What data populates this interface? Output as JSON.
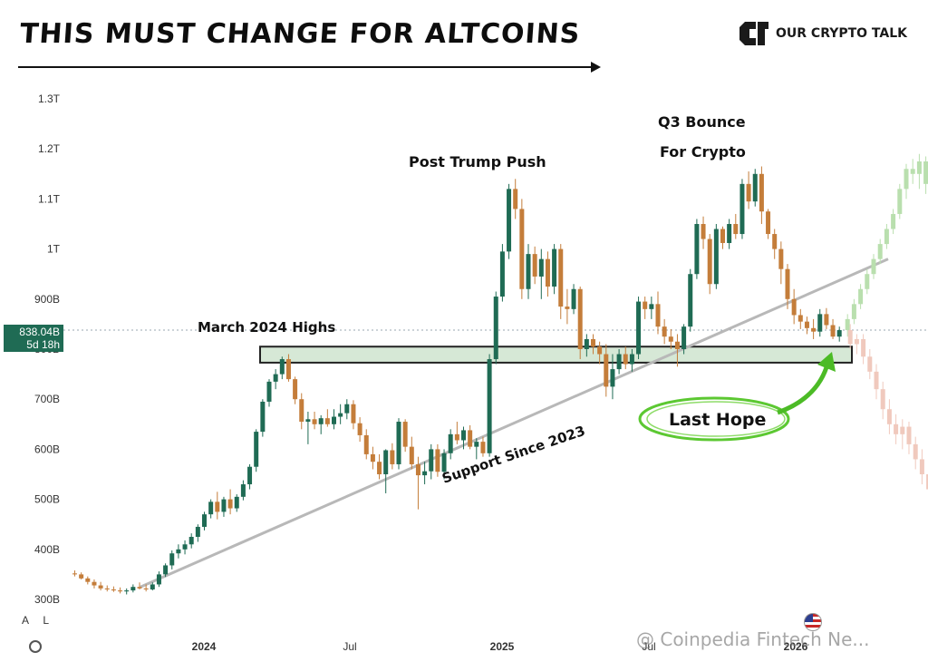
{
  "headline": "THIS MUST CHANGE FOR ALTCOINS",
  "brand": {
    "name": "OUR CRYPTO TALK"
  },
  "price_label": {
    "value": "838.04B",
    "countdown": "5d 18h"
  },
  "toolbar_letters": [
    "A",
    "L"
  ],
  "watermark": "@ Coinpedia Fintech Ne...",
  "colors": {
    "up": "#1f6b54",
    "down": "#c47d3a",
    "zone_fill": "#d6e8d6",
    "zone_border": "#222222",
    "trend": "#b8b8b8",
    "ghost_up": "#b9dfae",
    "ghost_down": "#f0c9bd",
    "hope": "#4cbb26"
  },
  "chart_data": {
    "type": "candlestick",
    "title": "THIS MUST CHANGE FOR ALTCOINS",
    "y_ticks": [
      "1.3T",
      "1.2T",
      "1.1T",
      "1T",
      "900B",
      "800B",
      "700B",
      "600B",
      "500B",
      "400B",
      "300B"
    ],
    "y_tick_values": [
      1300,
      1200,
      1100,
      1000,
      900,
      800,
      700,
      600,
      500,
      400,
      300
    ],
    "y_unit": "B USD",
    "ylim": [
      290,
      1340
    ],
    "x_ticks": [
      "2024",
      "Jul",
      "2025",
      "Jul",
      "2026"
    ],
    "current_price": 838.04,
    "candles_ohlc": [
      [
        352,
        358,
        346,
        350
      ],
      [
        350,
        354,
        340,
        342
      ],
      [
        342,
        346,
        330,
        335
      ],
      [
        335,
        340,
        322,
        328
      ],
      [
        328,
        335,
        318,
        322
      ],
      [
        322,
        328,
        316,
        320
      ],
      [
        320,
        326,
        315,
        318
      ],
      [
        318,
        324,
        312,
        316
      ],
      [
        316,
        322,
        310,
        318
      ],
      [
        318,
        330,
        314,
        325
      ],
      [
        325,
        334,
        320,
        322
      ],
      [
        322,
        330,
        316,
        320
      ],
      [
        320,
        334,
        318,
        330
      ],
      [
        330,
        356,
        325,
        350
      ],
      [
        350,
        372,
        345,
        368
      ],
      [
        368,
        398,
        360,
        392
      ],
      [
        392,
        410,
        382,
        400
      ],
      [
        400,
        418,
        390,
        410
      ],
      [
        410,
        432,
        402,
        425
      ],
      [
        425,
        450,
        415,
        445
      ],
      [
        445,
        475,
        438,
        470
      ],
      [
        470,
        500,
        462,
        495
      ],
      [
        495,
        515,
        460,
        475
      ],
      [
        475,
        505,
        465,
        500
      ],
      [
        500,
        520,
        470,
        482
      ],
      [
        482,
        510,
        475,
        505
      ],
      [
        505,
        538,
        498,
        530
      ],
      [
        530,
        570,
        520,
        565
      ],
      [
        565,
        640,
        555,
        635
      ],
      [
        635,
        700,
        625,
        695
      ],
      [
        695,
        740,
        685,
        735
      ],
      [
        735,
        760,
        720,
        750
      ],
      [
        750,
        785,
        740,
        780
      ],
      [
        780,
        790,
        735,
        740
      ],
      [
        740,
        745,
        690,
        700
      ],
      [
        700,
        712,
        640,
        655
      ],
      [
        655,
        675,
        610,
        660
      ],
      [
        660,
        675,
        640,
        650
      ],
      [
        650,
        668,
        630,
        662
      ],
      [
        662,
        680,
        645,
        650
      ],
      [
        650,
        680,
        640,
        665
      ],
      [
        665,
        690,
        650,
        672
      ],
      [
        672,
        700,
        660,
        690
      ],
      [
        690,
        698,
        640,
        652
      ],
      [
        652,
        664,
        615,
        628
      ],
      [
        628,
        640,
        580,
        590
      ],
      [
        590,
        605,
        560,
        575
      ],
      [
        575,
        590,
        540,
        550
      ],
      [
        550,
        600,
        512,
        598
      ],
      [
        598,
        612,
        560,
        570
      ],
      [
        570,
        662,
        560,
        655
      ],
      [
        655,
        660,
        595,
        605
      ],
      [
        605,
        625,
        560,
        570
      ],
      [
        570,
        585,
        480,
        548
      ],
      [
        548,
        575,
        530,
        556
      ],
      [
        556,
        610,
        540,
        600
      ],
      [
        600,
        610,
        545,
        555
      ],
      [
        555,
        600,
        540,
        592
      ],
      [
        592,
        640,
        580,
        630
      ],
      [
        630,
        655,
        610,
        618
      ],
      [
        618,
        645,
        600,
        638
      ],
      [
        638,
        648,
        600,
        605
      ],
      [
        605,
        622,
        580,
        615
      ],
      [
        615,
        625,
        585,
        592
      ],
      [
        592,
        790,
        585,
        780
      ],
      [
        780,
        915,
        770,
        905
      ],
      [
        905,
        1010,
        895,
        995
      ],
      [
        995,
        1130,
        980,
        1120
      ],
      [
        1120,
        1140,
        1060,
        1080
      ],
      [
        1080,
        1100,
        900,
        920
      ],
      [
        920,
        1010,
        900,
        990
      ],
      [
        990,
        1005,
        930,
        945
      ],
      [
        945,
        1000,
        900,
        980
      ],
      [
        980,
        995,
        905,
        925
      ],
      [
        925,
        1010,
        910,
        1000
      ],
      [
        1000,
        1010,
        860,
        885
      ],
      [
        885,
        920,
        850,
        880
      ],
      [
        880,
        930,
        870,
        920
      ],
      [
        920,
        925,
        780,
        800
      ],
      [
        800,
        830,
        785,
        820
      ],
      [
        820,
        830,
        790,
        805
      ],
      [
        805,
        815,
        770,
        790
      ],
      [
        790,
        810,
        705,
        725
      ],
      [
        725,
        790,
        700,
        760
      ],
      [
        760,
        800,
        750,
        790
      ],
      [
        790,
        805,
        760,
        770
      ],
      [
        770,
        800,
        755,
        790
      ],
      [
        790,
        905,
        780,
        895
      ],
      [
        895,
        905,
        860,
        880
      ],
      [
        880,
        905,
        860,
        890
      ],
      [
        890,
        915,
        830,
        845
      ],
      [
        845,
        860,
        810,
        825
      ],
      [
        825,
        840,
        800,
        815
      ],
      [
        815,
        830,
        765,
        800
      ],
      [
        800,
        850,
        790,
        845
      ],
      [
        845,
        960,
        835,
        950
      ],
      [
        950,
        1060,
        940,
        1050
      ],
      [
        1050,
        1065,
        1000,
        1020
      ],
      [
        1020,
        1030,
        910,
        930
      ],
      [
        930,
        1050,
        920,
        1040
      ],
      [
        1040,
        1045,
        1000,
        1012
      ],
      [
        1012,
        1060,
        1000,
        1050
      ],
      [
        1050,
        1070,
        1020,
        1030
      ],
      [
        1030,
        1140,
        1020,
        1130
      ],
      [
        1130,
        1155,
        1080,
        1095
      ],
      [
        1095,
        1160,
        1085,
        1150
      ],
      [
        1150,
        1165,
        1050,
        1075
      ],
      [
        1075,
        1080,
        1020,
        1030
      ],
      [
        1030,
        1040,
        980,
        1000
      ],
      [
        1000,
        1015,
        930,
        960
      ],
      [
        960,
        970,
        880,
        900
      ],
      [
        900,
        920,
        850,
        868
      ],
      [
        868,
        880,
        840,
        855
      ],
      [
        855,
        865,
        830,
        842
      ],
      [
        842,
        860,
        820,
        835
      ],
      [
        835,
        880,
        825,
        870
      ],
      [
        870,
        882,
        840,
        848
      ],
      [
        848,
        860,
        820,
        825
      ],
      [
        825,
        845,
        815,
        838
      ]
    ],
    "projected_up_ohlc": [
      [
        838,
        870,
        825,
        860
      ],
      [
        860,
        900,
        850,
        890
      ],
      [
        890,
        930,
        880,
        920
      ],
      [
        920,
        960,
        910,
        950
      ],
      [
        950,
        990,
        940,
        980
      ],
      [
        980,
        1020,
        970,
        1010
      ],
      [
        1010,
        1050,
        1000,
        1040
      ],
      [
        1040,
        1080,
        1030,
        1070
      ],
      [
        1070,
        1130,
        1060,
        1120
      ],
      [
        1120,
        1170,
        1100,
        1160
      ],
      [
        1160,
        1180,
        1130,
        1150
      ],
      [
        1150,
        1190,
        1120,
        1175
      ],
      [
        1175,
        1185,
        1110,
        1130
      ],
      [
        1130,
        1160,
        1110,
        1150
      ],
      [
        1150,
        1170,
        1120,
        1140
      ]
    ],
    "projected_down_ohlc": [
      [
        838,
        850,
        800,
        810
      ],
      [
        810,
        830,
        790,
        820
      ],
      [
        820,
        830,
        770,
        785
      ],
      [
        785,
        800,
        740,
        755
      ],
      [
        755,
        770,
        700,
        720
      ],
      [
        720,
        735,
        660,
        680
      ],
      [
        680,
        700,
        630,
        650
      ],
      [
        650,
        670,
        610,
        630
      ],
      [
        630,
        660,
        600,
        645
      ],
      [
        645,
        655,
        590,
        610
      ],
      [
        610,
        625,
        560,
        580
      ],
      [
        580,
        600,
        530,
        550
      ],
      [
        550,
        565,
        500,
        520
      ],
      [
        520,
        545,
        490,
        535
      ],
      [
        535,
        555,
        500,
        515
      ]
    ],
    "resistance_zone": [
      773,
      805
    ],
    "trendline": [
      [
        0,
        310
      ],
      [
        117,
        990
      ]
    ],
    "annotations": {
      "zone": "March 2024 Highs",
      "trump": "Post Trump Push",
      "q3_line1": "Q3 Bounce",
      "q3_line2": "For Crypto",
      "support": "Support Since 2023",
      "hope": "Last Hope"
    },
    "grid": false
  }
}
